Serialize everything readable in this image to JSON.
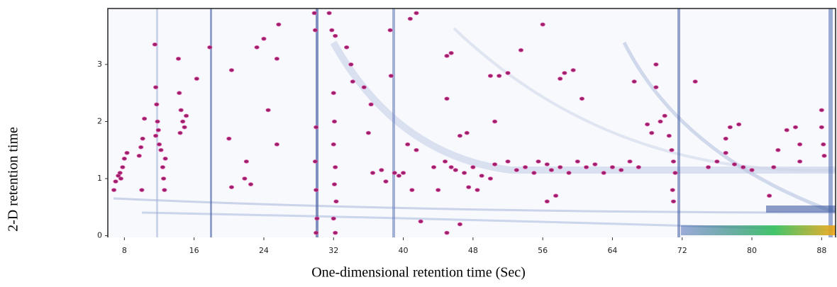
{
  "chart_data": {
    "type": "scatter",
    "x_label": "One-dimensional retention time (Sec)",
    "y_label": "2-D retention time",
    "xlim": [
      6.1,
      89.6
    ],
    "ylim": [
      -0.03,
      3.98
    ],
    "xticks": [
      8,
      16,
      24,
      32,
      40,
      48,
      56,
      64,
      72,
      80,
      88
    ],
    "yticks": [
      0,
      1,
      2,
      3
    ],
    "color": "#9b1f6b",
    "x": [
      7.0,
      7.3,
      7.5,
      7.8,
      8.0,
      8.3,
      7.6,
      6.8,
      9.7,
      9.9,
      10.1,
      10.3,
      10.0,
      11.5,
      11.6,
      11.7,
      11.8,
      11.9,
      11.6,
      12.0,
      12.2,
      12.4,
      12.5,
      12.6,
      12.7,
      14.2,
      14.3,
      14.5,
      14.7,
      14.9,
      15.1,
      14.4,
      17.8,
      16.3,
      20.3,
      20.0,
      21.8,
      20.3,
      22.0,
      23.2,
      24.0,
      25.7,
      25.5,
      24.5,
      25.5,
      22.5,
      29.8,
      29.9,
      30.0,
      29.9,
      30.0,
      30.1,
      30.0,
      31.5,
      31.8,
      32.2,
      32.0,
      32.1,
      32.0,
      32.2,
      32.1,
      32.3,
      32.0,
      32.2,
      33.5,
      34.0,
      34.2,
      35.5,
      36.3,
      36.0,
      38.5,
      38.6,
      39.0,
      40.8,
      41.5,
      40.5,
      41.5,
      41.0,
      42.0,
      45.0,
      45.5,
      45.0,
      46.5,
      47.3,
      44.8,
      45.5,
      46.0,
      47.0,
      48.0,
      49.0,
      50.0,
      50.5,
      52.0,
      53.0,
      54.0,
      55.0,
      55.5,
      56.5,
      57.0,
      58.0,
      59.0,
      60.0,
      61.0,
      62.0,
      63.0,
      64.0,
      65.0,
      66.0,
      67.0,
      48.5,
      47.5,
      50.0,
      51.0,
      52.0,
      50.5,
      53.5,
      56.0,
      58.0,
      58.5,
      59.5,
      60.5,
      57.5,
      56.5,
      66.5,
      69.0,
      69.0,
      68.0,
      68.5,
      69.5,
      70.0,
      70.5,
      70.8,
      71.0,
      71.2,
      70.9,
      71.0,
      73.5,
      75.0,
      76.0,
      77.0,
      77.0,
      77.5,
      78.5,
      78.0,
      79.0,
      80.0,
      82.0,
      82.5,
      83.0,
      84.0,
      85.0,
      85.5,
      85.5,
      88.0,
      88.2,
      88.3,
      88.0,
      36.5,
      37.5,
      38.0,
      39.5,
      40.0,
      43.5,
      44.0,
      45.0,
      46.5
    ],
    "values": [
      0.95,
      1.05,
      1.1,
      1.2,
      1.35,
      1.45,
      1.0,
      0.8,
      1.4,
      1.55,
      1.7,
      2.05,
      0.8,
      3.35,
      2.6,
      2.3,
      2.0,
      1.85,
      1.75,
      1.6,
      1.5,
      1.2,
      1.0,
      0.8,
      1.35,
      3.1,
      2.5,
      2.2,
      2.0,
      1.9,
      2.1,
      1.8,
      3.3,
      2.75,
      2.9,
      1.7,
      1.0,
      0.85,
      1.3,
      3.3,
      3.45,
      3.7,
      3.1,
      2.2,
      1.6,
      0.9,
      3.9,
      3.6,
      1.9,
      1.3,
      0.8,
      0.3,
      0.05,
      3.9,
      3.6,
      3.5,
      2.5,
      2.0,
      1.6,
      1.2,
      0.9,
      0.6,
      0.3,
      0.05,
      3.3,
      3.0,
      2.7,
      2.6,
      2.3,
      1.8,
      3.6,
      2.8,
      1.1,
      3.8,
      3.9,
      1.6,
      1.5,
      0.8,
      0.25,
      3.15,
      3.2,
      2.4,
      1.75,
      1.8,
      1.3,
      1.2,
      1.15,
      1.1,
      1.2,
      1.05,
      1.0,
      1.25,
      1.3,
      1.15,
      1.2,
      1.1,
      1.3,
      1.25,
      1.15,
      1.2,
      1.1,
      1.3,
      1.2,
      1.25,
      1.1,
      1.2,
      1.15,
      1.3,
      1.2,
      0.8,
      0.85,
      2.8,
      2.8,
      2.85,
      2.0,
      3.25,
      3.7,
      2.75,
      2.85,
      2.9,
      2.4,
      0.7,
      0.6,
      2.7,
      3.0,
      2.6,
      1.95,
      1.8,
      2.0,
      2.1,
      1.75,
      1.5,
      1.3,
      1.1,
      0.8,
      0.6,
      2.7,
      1.2,
      1.3,
      1.45,
      1.7,
      1.9,
      1.95,
      1.25,
      1.2,
      1.15,
      0.7,
      1.2,
      1.5,
      1.85,
      1.9,
      1.6,
      1.3,
      1.9,
      1.6,
      1.4,
      2.2,
      1.1,
      1.15,
      0.95,
      1.05,
      1.1,
      1.2,
      0.8,
      0.05,
      0.2
    ]
  }
}
